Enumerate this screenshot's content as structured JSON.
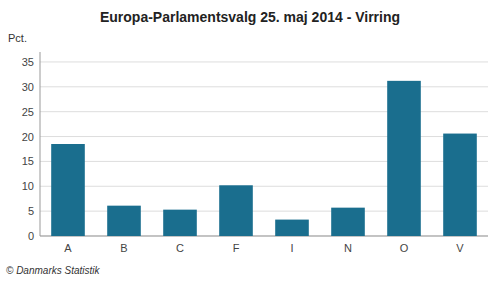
{
  "chart_data": {
    "type": "bar",
    "title": "Europa-Parlamentsvalg 25. maj 2014 - Virring",
    "ylabel": "Pct.",
    "categories": [
      "A",
      "B",
      "C",
      "F",
      "I",
      "N",
      "O",
      "V"
    ],
    "values": [
      18.5,
      6.1,
      5.3,
      10.2,
      3.3,
      5.7,
      31.2,
      20.6
    ],
    "color": "#1a6e8e",
    "ylim": [
      0,
      37
    ],
    "yticks": [
      0,
      5,
      10,
      15,
      20,
      25,
      30,
      35
    ],
    "grid": true,
    "annotations": [
      "© Danmarks Statistik"
    ]
  }
}
